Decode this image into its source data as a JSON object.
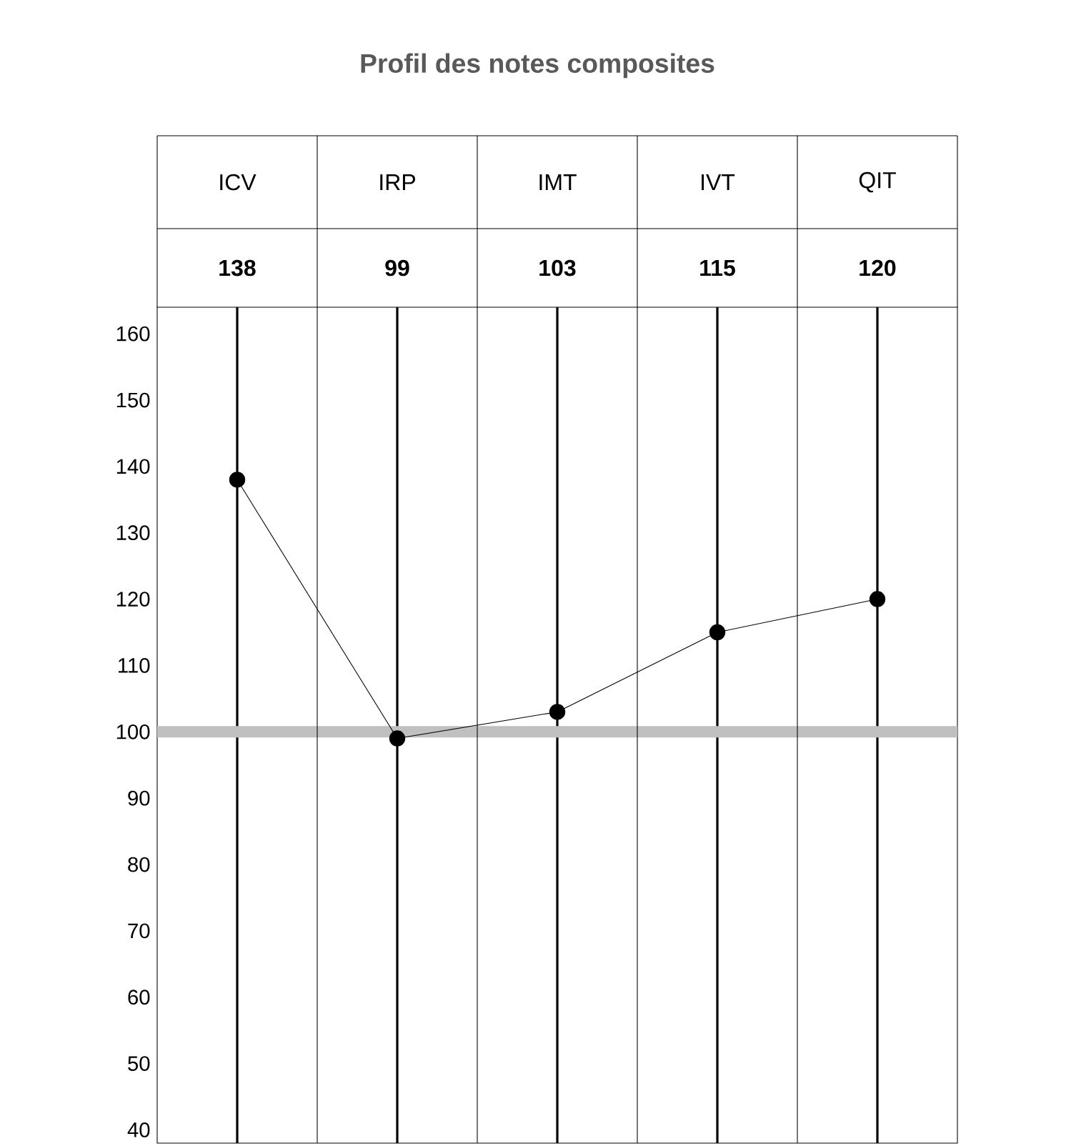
{
  "chart_data": {
    "type": "line",
    "title": "Profil des notes composites",
    "categories": [
      "ICV",
      "IRP",
      "IMT",
      "IVT",
      "QIT"
    ],
    "series": [
      {
        "color": "#000000",
        "values": [
          138,
          99,
          103,
          115,
          120
        ]
      }
    ],
    "data_labels": true,
    "marker": "circle",
    "line_style": "solid",
    "grid": "x",
    "ylim": [
      38,
      164
    ],
    "yticks": [
      40,
      50,
      60,
      70,
      80,
      90,
      100,
      110,
      120,
      130,
      140,
      150,
      160
    ],
    "ref_lines": [
      {
        "axis": "y",
        "value": 100,
        "color": "#c0c0c0"
      }
    ]
  }
}
